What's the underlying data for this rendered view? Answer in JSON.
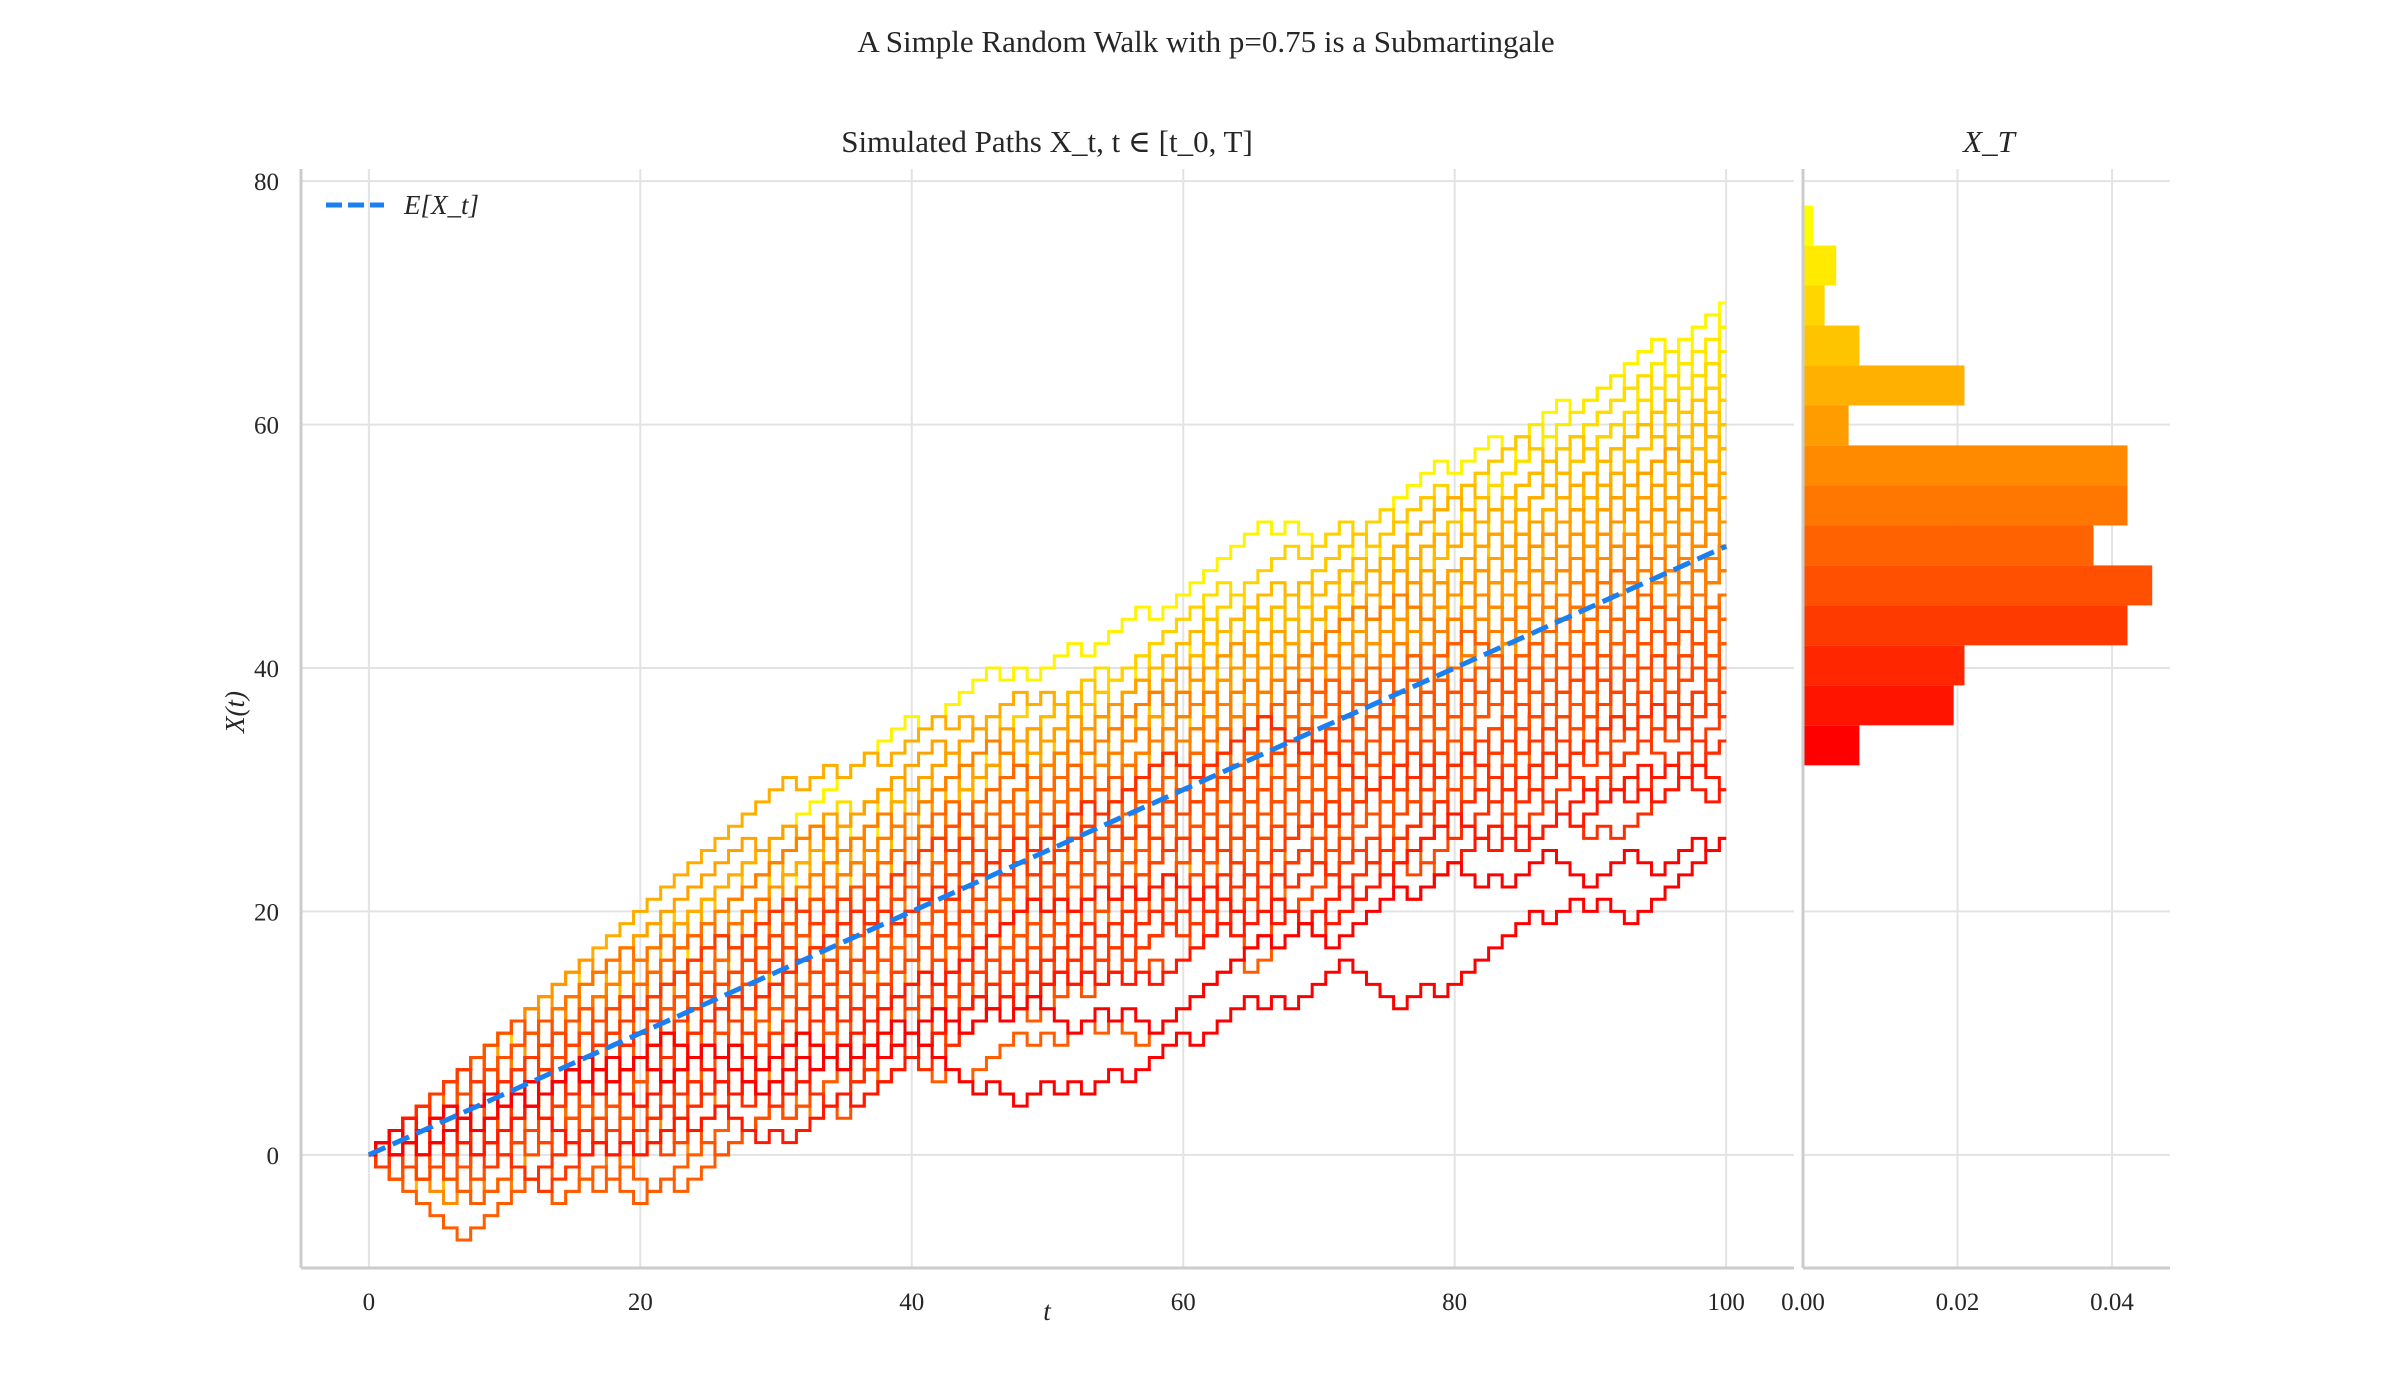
{
  "chart_data": [
    {
      "type": "line",
      "suptitle": "A Simple Random Walk with p=0.75 is a Submartingale",
      "title": "Simulated Paths X_t, t ∈ [t_0, T]",
      "xlabel": "t",
      "ylabel": "X(t)",
      "xlim": [
        -5,
        105
      ],
      "ylim": [
        -9.3,
        81
      ],
      "xticks": [
        "0",
        "20",
        "40",
        "60",
        "80",
        "100"
      ],
      "yticks": [
        "0",
        "20",
        "40",
        "60",
        "80"
      ],
      "grid": true,
      "step_probability": 0.75,
      "steps": 100,
      "start_value": 0,
      "path_colormap": "autumn (red = low X_T, yellow = high X_T)",
      "expected_series": {
        "name": "E[X_t]",
        "x": [
          0,
          100
        ],
        "y": [
          0,
          50
        ],
        "color": "#1a7ff0",
        "style": "dashed"
      },
      "legend": {
        "placement": "top-left",
        "entries": [
          "E[X_t]"
        ]
      }
    },
    {
      "type": "bar",
      "orientation": "horizontal",
      "title": "X_T",
      "xlim": [
        0,
        0.0475
      ],
      "ylim": [
        -9.3,
        81
      ],
      "xticks": [
        "0.00",
        "0.02",
        "0.04"
      ],
      "grid": true,
      "bin_edges": [
        32.0,
        35.29,
        38.57,
        41.86,
        45.14,
        48.43,
        51.71,
        55.0,
        58.29,
        61.57,
        64.86,
        68.14,
        71.43,
        74.71,
        78.0
      ],
      "density": [
        0.0073,
        0.0195,
        0.0209,
        0.042,
        0.0452,
        0.0376,
        0.042,
        0.042,
        0.0059,
        0.0209,
        0.0073,
        0.0028,
        0.0043,
        0.0013
      ],
      "colors": [
        "#ff0000",
        "#ff1400",
        "#ff2600",
        "#ff3a00",
        "#ff4f00",
        "#ff6200",
        "#ff7700",
        "#ff8a00",
        "#ff9c00",
        "#ffb000",
        "#ffc400",
        "#ffd600",
        "#ffea00",
        "#ffff00"
      ]
    }
  ]
}
